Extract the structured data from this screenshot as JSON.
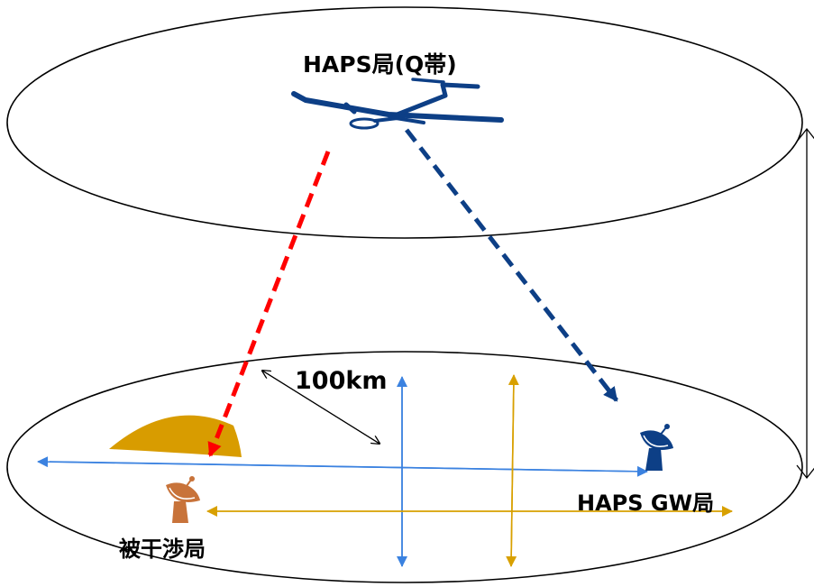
{
  "labels": {
    "haps_station": "HAPS局(Q帯)",
    "distance": "100km",
    "gateway_station": "HAPS GW局",
    "interfered_station": "被干渉局"
  },
  "colors": {
    "interference_link": "#ff0000",
    "feeder_link": "#0d3f86",
    "haps_aircraft": "#0d3f86",
    "blue_axis": "#3b82e0",
    "gold_axis": "#d8a000",
    "coverage_area": "#d89c00",
    "interfered_dish": "#c8733a",
    "gateway_dish": "#0d3f86"
  },
  "icons": {
    "aircraft": "haps-aircraft-icon",
    "gateway": "satellite-dish-icon",
    "victim": "satellite-dish-icon"
  }
}
